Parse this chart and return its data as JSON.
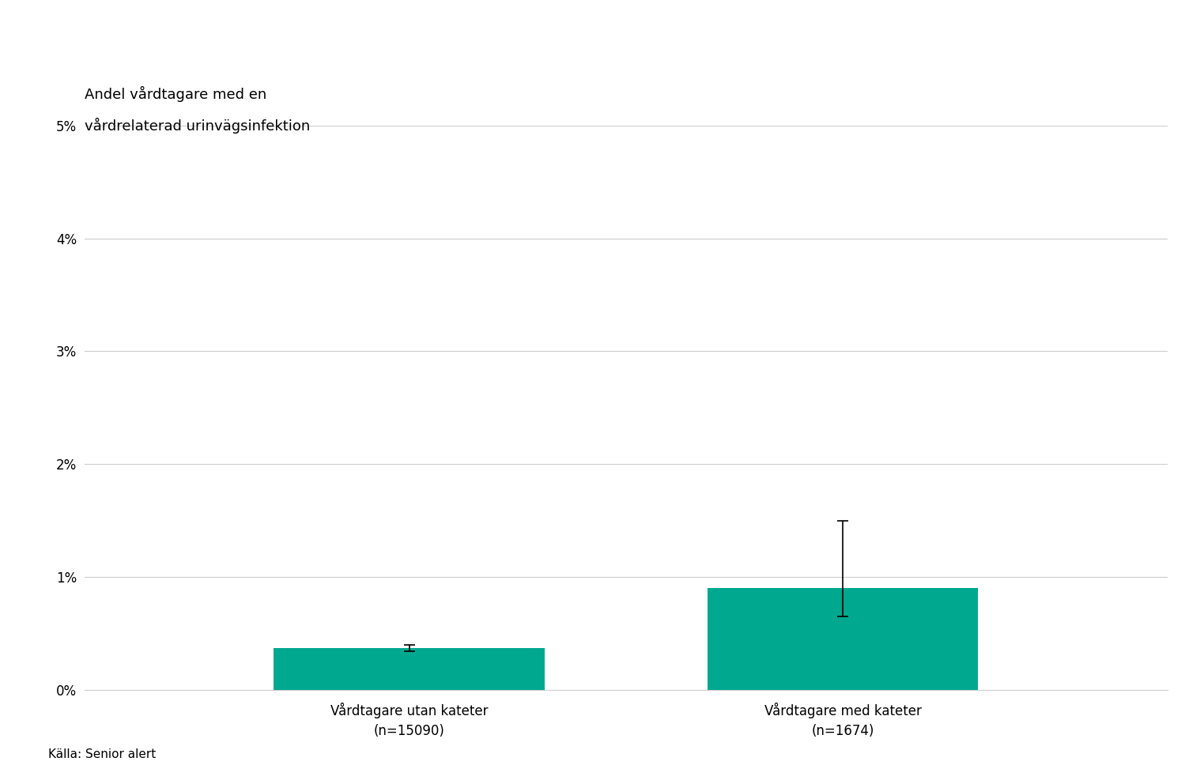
{
  "title_line1": "Andel vårdtagare med en",
  "title_line2": "vårdrelaterad urinvägsinfektion",
  "categories": [
    "Vårdtagare utan kateter\n(n=15090)",
    "Vårdtagare med kateter\n(n=1674)"
  ],
  "values": [
    0.0037,
    0.009
  ],
  "ci_lower": [
    0.0003,
    0.0025
  ],
  "ci_upper": [
    0.0003,
    0.006
  ],
  "bar_color": "#00A88F",
  "background_color": "#ffffff",
  "ylim": [
    0,
    0.05
  ],
  "yticks": [
    0,
    0.01,
    0.02,
    0.03,
    0.04,
    0.05
  ],
  "ytick_labels": [
    "0%",
    "1%",
    "2%",
    "3%",
    "4%",
    "5%"
  ],
  "source": "Källa: Senior alert",
  "grid_color": "#cccccc",
  "title_fontsize": 13,
  "tick_fontsize": 12,
  "source_fontsize": 11,
  "bar_width": 0.25,
  "x_positions": [
    0.3,
    0.7
  ]
}
